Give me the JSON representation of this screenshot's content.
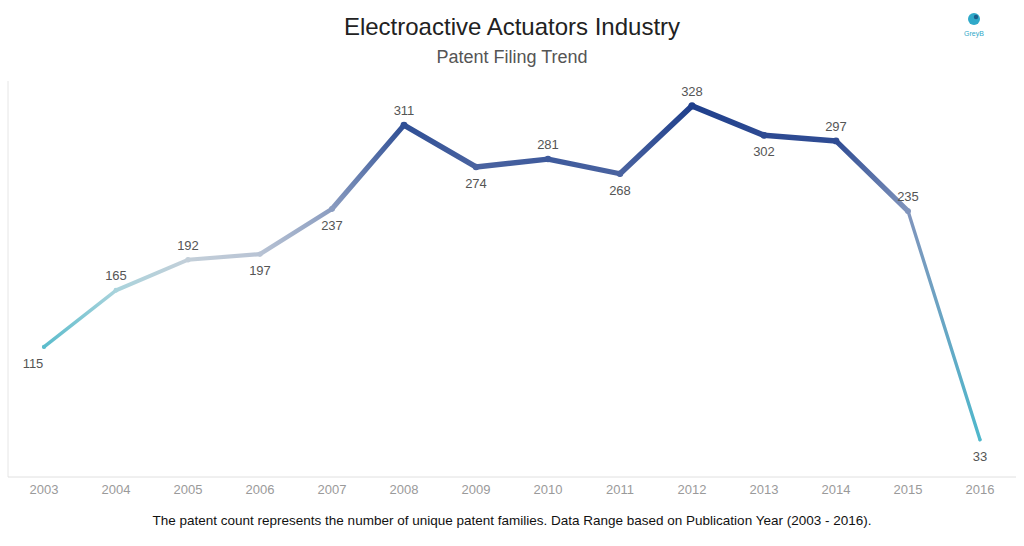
{
  "chart_data": {
    "type": "line",
    "title": "Electroactive Actuators Industry",
    "subtitle": "Patent Filing Trend",
    "annotations": [
      "The patent count represents the number of unique patent families. Data Range based on Publication Year (2003 - 2016).",
      "GreyB"
    ],
    "categories": [
      "2003",
      "2004",
      "2005",
      "2006",
      "2007",
      "2008",
      "2009",
      "2010",
      "2011",
      "2012",
      "2013",
      "2014",
      "2015",
      "2016"
    ],
    "values": [
      115,
      165,
      192,
      197,
      237,
      311,
      274,
      281,
      268,
      328,
      302,
      297,
      235,
      33
    ],
    "colors": [
      "#5bbccc",
      "#a9d3dc",
      "#c3cfd9",
      "#b8c3d4",
      "#8a9cc0",
      "#2f4f95",
      "#4a63a0",
      "#3e5a9c",
      "#4a63a0",
      "#1f3f8c",
      "#2d4a92",
      "#2f4c93",
      "#8094bc",
      "#4fb8cc"
    ],
    "ylim": [
      0,
      350
    ],
    "grid": false,
    "data_labels": true,
    "tick_labels": "x"
  }
}
